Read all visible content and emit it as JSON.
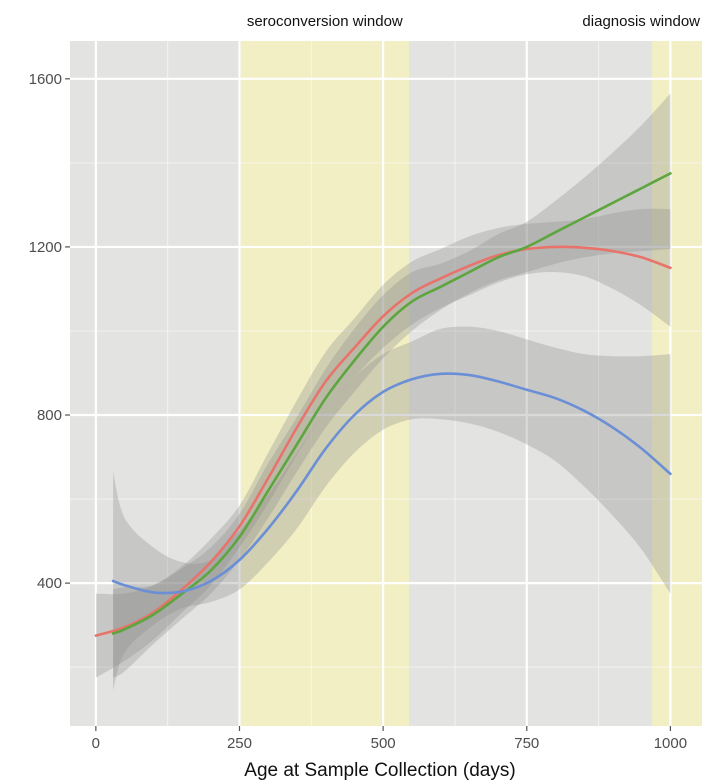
{
  "chart_data": {
    "type": "line",
    "title": "",
    "xlabel": "Age at Sample Collection (days)",
    "ylabel": "",
    "xlim": [
      -45,
      1055
    ],
    "ylim": [
      60,
      1690
    ],
    "x_ticks": [
      "0",
      "250",
      "500",
      "750",
      "1000"
    ],
    "x_tick_values": [
      0,
      250,
      500,
      750,
      1000
    ],
    "y_ticks": [
      "400",
      "800",
      "1200",
      "1600"
    ],
    "y_tick_values": [
      400,
      800,
      1200,
      1600
    ],
    "grid": true,
    "legend": "none",
    "background_color": "#e3e3e1",
    "grid_color": "#ffffff",
    "band_color": "#f2efc0",
    "ribbon_color": "#8c8c8c",
    "windows": [
      {
        "label": "seroconversion window",
        "x_start": 252,
        "x_end": 545
      },
      {
        "label": "diagnosis window",
        "x_start": 968,
        "x_end": 1055
      }
    ],
    "series": [
      {
        "color": "#e8736b",
        "x": [
          0,
          50,
          100,
          150,
          200,
          250,
          300,
          350,
          400,
          450,
          500,
          550,
          600,
          650,
          700,
          750,
          800,
          850,
          900,
          950,
          1000
        ],
        "y": [
          275,
          295,
          330,
          385,
          450,
          535,
          650,
          770,
          880,
          960,
          1035,
          1090,
          1125,
          1155,
          1180,
          1195,
          1200,
          1198,
          1190,
          1175,
          1150
        ],
        "lower": [
          175,
          215,
          265,
          330,
          395,
          485,
          590,
          705,
          810,
          890,
          960,
          1015,
          1055,
          1085,
          1115,
          1135,
          1140,
          1130,
          1100,
          1060,
          1010
        ],
        "upper": [
          375,
          375,
          395,
          440,
          505,
          585,
          710,
          835,
          950,
          1030,
          1110,
          1165,
          1195,
          1225,
          1245,
          1255,
          1260,
          1266,
          1280,
          1290,
          1290
        ]
      },
      {
        "color": "#5da63f",
        "x": [
          30,
          50,
          100,
          150,
          200,
          250,
          300,
          350,
          400,
          450,
          500,
          550,
          600,
          650,
          700,
          750,
          800,
          850,
          900,
          950,
          1000
        ],
        "y": [
          280,
          290,
          325,
          375,
          430,
          510,
          620,
          730,
          840,
          930,
          1010,
          1070,
          1105,
          1140,
          1175,
          1200,
          1235,
          1270,
          1305,
          1340,
          1375
        ],
        "lower": [
          175,
          190,
          255,
          315,
          375,
          455,
          555,
          665,
          770,
          855,
          935,
          1000,
          1050,
          1090,
          1120,
          1140,
          1160,
          1175,
          1185,
          1190,
          1195
        ],
        "upper": [
          385,
          390,
          395,
          435,
          485,
          565,
          685,
          795,
          910,
          1005,
          1085,
          1140,
          1160,
          1190,
          1230,
          1260,
          1310,
          1365,
          1425,
          1490,
          1565
        ]
      },
      {
        "color": "#6b8fd6",
        "x": [
          30,
          50,
          100,
          150,
          200,
          250,
          300,
          350,
          400,
          450,
          500,
          550,
          600,
          650,
          700,
          750,
          800,
          850,
          900,
          950,
          1000
        ],
        "y": [
          405,
          395,
          378,
          380,
          405,
          455,
          530,
          620,
          720,
          800,
          855,
          885,
          898,
          895,
          880,
          860,
          840,
          810,
          770,
          720,
          660
        ],
        "lower": [
          145,
          235,
          300,
          340,
          355,
          385,
          450,
          530,
          630,
          710,
          765,
          790,
          790,
          780,
          760,
          730,
          690,
          630,
          560,
          480,
          375
        ],
        "upper": [
          665,
          555,
          485,
          450,
          455,
          525,
          610,
          710,
          810,
          890,
          945,
          975,
          1005,
          1010,
          1000,
          980,
          960,
          945,
          940,
          940,
          945
        ]
      }
    ]
  }
}
